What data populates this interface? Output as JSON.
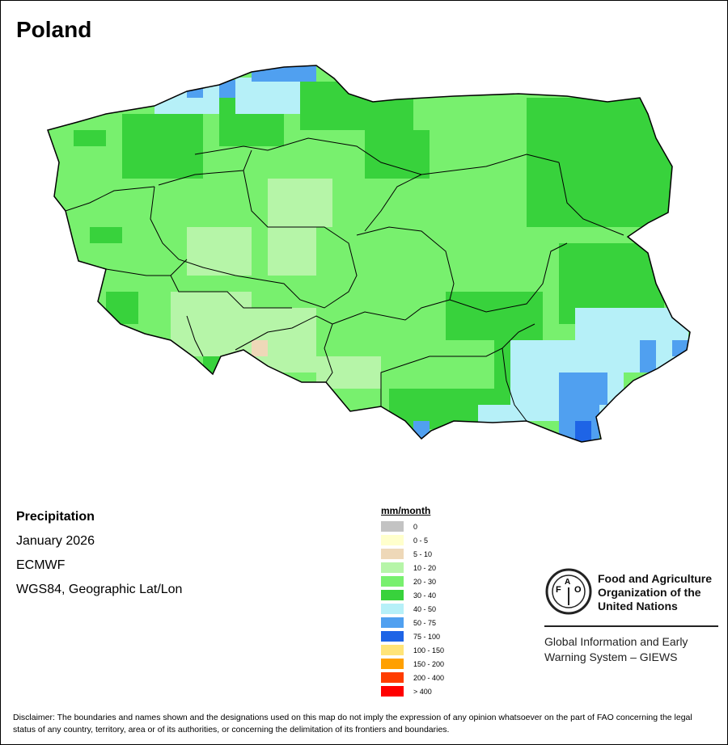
{
  "title": "Poland",
  "info": {
    "variable": "Precipitation",
    "period": "January 2026",
    "source": "ECMWF",
    "projection": "WGS84, Geographic Lat/Lon"
  },
  "legend": {
    "title": "mm/month",
    "items": [
      {
        "label": "0",
        "color": "#c3c3c3"
      },
      {
        "label": "0 - 5",
        "color": "#ffffcc"
      },
      {
        "label": "5 - 10",
        "color": "#eed8b8"
      },
      {
        "label": "10 - 20",
        "color": "#b6f5a8"
      },
      {
        "label": "20 - 30",
        "color": "#78f06e"
      },
      {
        "label": "30 - 40",
        "color": "#38d23c"
      },
      {
        "label": "40 - 50",
        "color": "#b6f0f8"
      },
      {
        "label": "50 - 75",
        "color": "#50a0f0"
      },
      {
        "label": "75 - 100",
        "color": "#1e64e6"
      },
      {
        "label": "100 - 150",
        "color": "#ffe478"
      },
      {
        "label": "150 - 200",
        "color": "#ffa000"
      },
      {
        "label": "200 - 400",
        "color": "#ff3c00"
      },
      {
        "label": "> 400",
        "color": "#ff0000"
      }
    ]
  },
  "logo": {
    "org_name": "Food and Agriculture Organization of the United Nations",
    "emblem_text": "FAO FIAT PANIS",
    "system": "Global Information and Early Warning System – GIEWS"
  },
  "disclaimer": "Disclaimer: The boundaries and names shown and the designations used on this map do not imply the expression of any opinion whatsoever on the part of FAO concerning the legal status of any country, territory, area or of its authorities, or concerning the delimitation of its frontiers and boundaries."
}
